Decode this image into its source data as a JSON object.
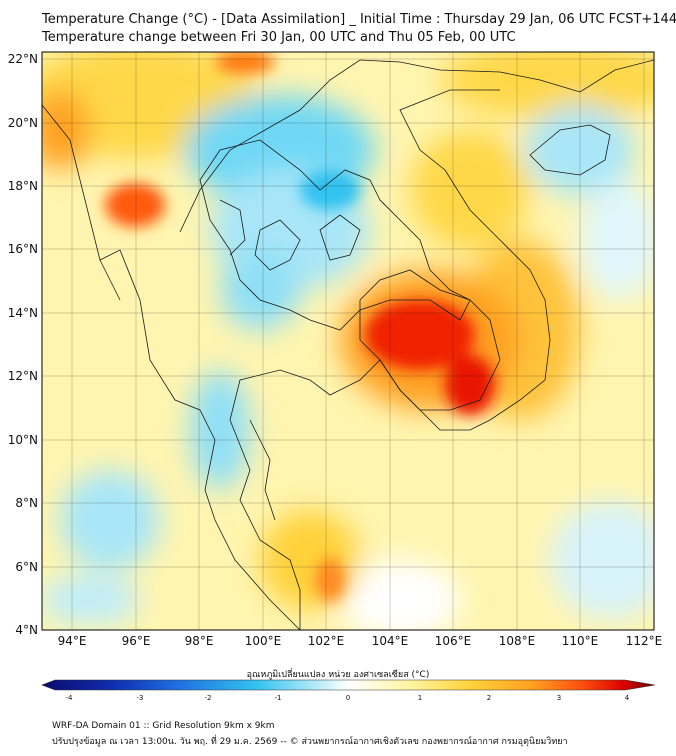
{
  "title_line1": "Temperature Change (°C) - [Data Assimilation] _ Initial Time : Thursday 29 Jan, 06 UTC FCST+144",
  "title_line2": "Temperature change between Fri 30 Jan, 00 UTC and Thu 05 Feb, 00 UTC",
  "lat_labels": [
    "22°N",
    "20°N",
    "18°N",
    "16°N",
    "14°N",
    "12°N",
    "10°N",
    "8°N",
    "6°N",
    "4°N"
  ],
  "lon_labels": [
    "94°E",
    "96°E",
    "98°E",
    "100°E",
    "102°E",
    "104°E",
    "106°E",
    "108°E",
    "110°E",
    "112°E"
  ],
  "colorbar": {
    "title": "อุณหภูมิเปลี่ยนแปลง หน่วย องศาเซลเซียส (°C)",
    "ticks": [
      "-4",
      "-3",
      "-2",
      "-1",
      "0",
      "1",
      "2",
      "3",
      "4"
    ],
    "colors": [
      "#0a0a6e",
      "#1030b0",
      "#1f6fe0",
      "#33c2f0",
      "#b8ecf8",
      "#ffffff",
      "#fff5a0",
      "#ffd23a",
      "#ffa020",
      "#ff5010",
      "#d80000",
      "#6a0000"
    ]
  },
  "footer_line1": "WRF-DA Domain 01 :: Grid Resolution 9km x 9km",
  "footer_line2": "ปรับปรุงข้อมูล ณ เวลา 13:00น. วัน พฤ. ที่ 29 ม.ค. 2569 -- © ส่วนพยากรณ์อากาศเชิงตัวเลข กองพยากรณ์อากาศ กรมอุตุนิยมวิทยา"
}
